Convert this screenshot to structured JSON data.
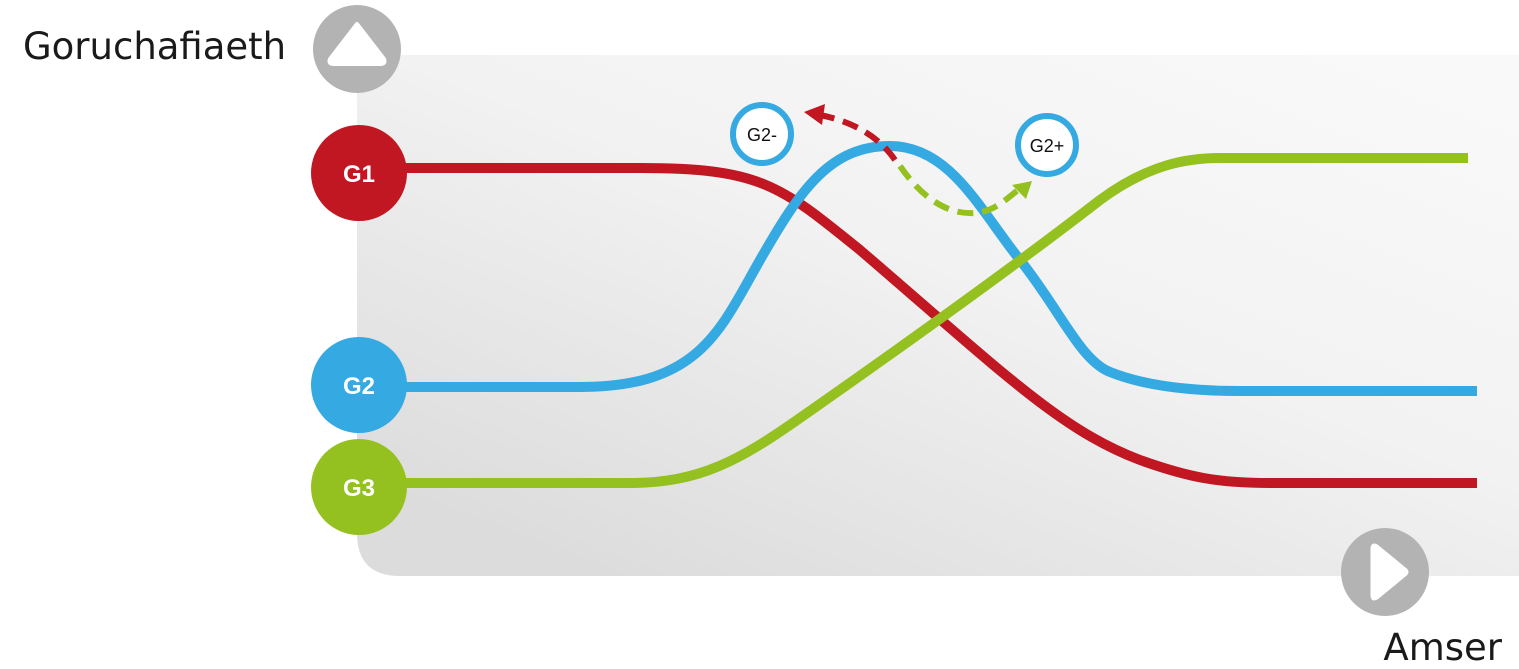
{
  "axes": {
    "y_label": "Goruchafiaeth",
    "x_label": "Amser",
    "y_arrow_icon": "triangle-up-icon",
    "x_arrow_icon": "triangle-right-icon"
  },
  "colors": {
    "panel_light": "#f9f9f9",
    "panel_dark": "#dcdcdc",
    "axis_button": "#b3b3b3",
    "g1": "#c01722",
    "g2": "#35a9e1",
    "g3": "#94c11f"
  },
  "groups": [
    {
      "id": "g1",
      "label": "G1",
      "color": "#c01722"
    },
    {
      "id": "g2",
      "label": "G2",
      "color": "#35a9e1"
    },
    {
      "id": "g3",
      "label": "G3",
      "color": "#94c11f"
    }
  ],
  "branches": [
    {
      "id": "g2-minus",
      "label": "G2-",
      "arrow_color": "#c01722"
    },
    {
      "id": "g2-plus",
      "label": "G2+",
      "arrow_color": "#94c11f"
    }
  ]
}
